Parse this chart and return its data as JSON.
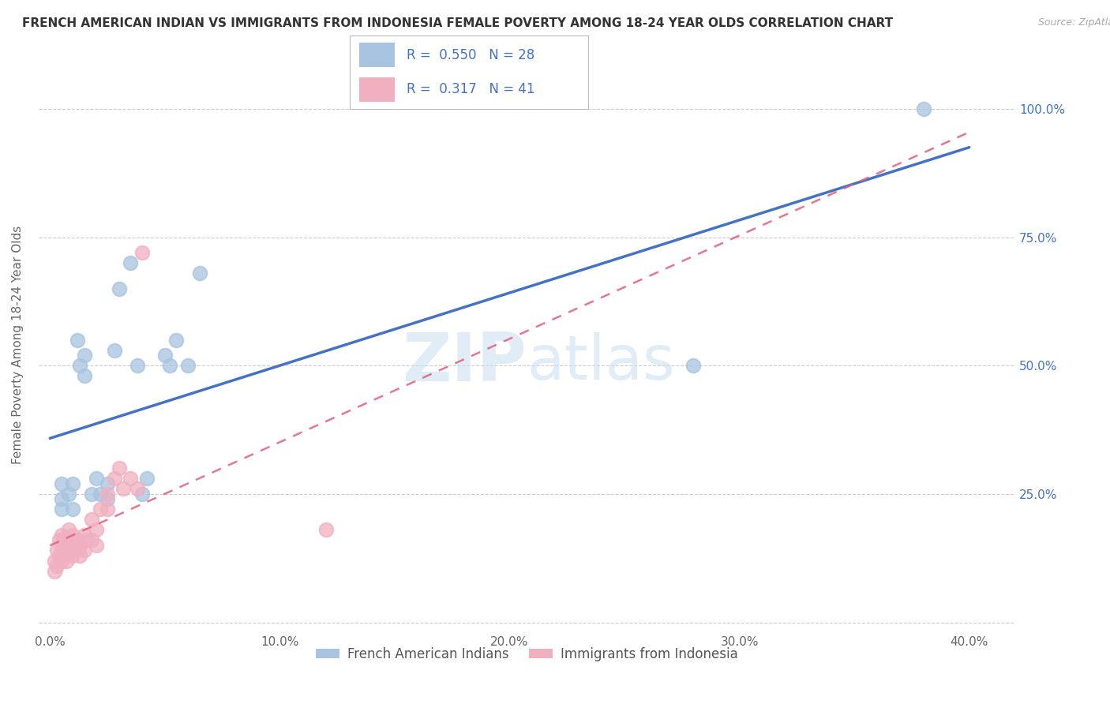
{
  "title": "FRENCH AMERICAN INDIAN VS IMMIGRANTS FROM INDONESIA FEMALE POVERTY AMONG 18-24 YEAR OLDS CORRELATION CHART",
  "source": "Source: ZipAtlas.com",
  "ylabel": "Female Poverty Among 18-24 Year Olds",
  "xlim": [
    -0.005,
    0.42
  ],
  "ylim": [
    -0.02,
    1.1
  ],
  "x_ticks": [
    0.0,
    0.1,
    0.2,
    0.3,
    0.4
  ],
  "x_tick_labels": [
    "0.0%",
    "10.0%",
    "20.0%",
    "30.0%",
    "40.0%"
  ],
  "y_ticks": [
    0.0,
    0.25,
    0.5,
    0.75,
    1.0
  ],
  "y_tick_labels": [
    "",
    "25.0%",
    "50.0%",
    "75.0%",
    "100.0%"
  ],
  "R_blue": 0.55,
  "N_blue": 28,
  "R_pink": 0.317,
  "N_pink": 41,
  "legend_label_blue": "French American Indians",
  "legend_label_pink": "Immigrants from Indonesia",
  "blue_scatter_color": "#a8c4e0",
  "pink_scatter_color": "#f0b0c0",
  "blue_line_color": "#4472c4",
  "pink_line_color": "#e06080",
  "legend_text_color": "#4472c4",
  "grid_color": "#cccccc",
  "title_color": "#333333",
  "ylabel_color": "#666666",
  "xtick_color": "#666666",
  "ytick_color": "#4472c4",
  "blue_x": [
    0.005,
    0.005,
    0.005,
    0.008,
    0.01,
    0.01,
    0.012,
    0.013,
    0.015,
    0.015,
    0.018,
    0.02,
    0.022,
    0.025,
    0.025,
    0.028,
    0.03,
    0.035,
    0.038,
    0.04,
    0.042,
    0.05,
    0.052,
    0.055,
    0.06,
    0.065,
    0.28,
    0.38
  ],
  "blue_y": [
    0.22,
    0.24,
    0.27,
    0.25,
    0.22,
    0.27,
    0.55,
    0.5,
    0.48,
    0.52,
    0.25,
    0.28,
    0.25,
    0.24,
    0.27,
    0.53,
    0.65,
    0.7,
    0.5,
    0.25,
    0.28,
    0.52,
    0.5,
    0.55,
    0.5,
    0.68,
    0.5,
    1.0
  ],
  "pink_x": [
    0.002,
    0.002,
    0.003,
    0.003,
    0.004,
    0.004,
    0.005,
    0.005,
    0.005,
    0.006,
    0.006,
    0.007,
    0.007,
    0.008,
    0.008,
    0.009,
    0.009,
    0.01,
    0.01,
    0.01,
    0.012,
    0.012,
    0.013,
    0.013,
    0.015,
    0.015,
    0.016,
    0.018,
    0.018,
    0.02,
    0.02,
    0.022,
    0.025,
    0.025,
    0.028,
    0.03,
    0.032,
    0.035,
    0.038,
    0.04,
    0.12
  ],
  "pink_y": [
    0.12,
    0.1,
    0.14,
    0.11,
    0.16,
    0.13,
    0.14,
    0.12,
    0.17,
    0.13,
    0.16,
    0.14,
    0.12,
    0.15,
    0.18,
    0.16,
    0.14,
    0.15,
    0.17,
    0.13,
    0.14,
    0.16,
    0.15,
    0.13,
    0.17,
    0.14,
    0.16,
    0.2,
    0.16,
    0.18,
    0.15,
    0.22,
    0.25,
    0.22,
    0.28,
    0.3,
    0.26,
    0.28,
    0.26,
    0.72,
    0.18
  ]
}
